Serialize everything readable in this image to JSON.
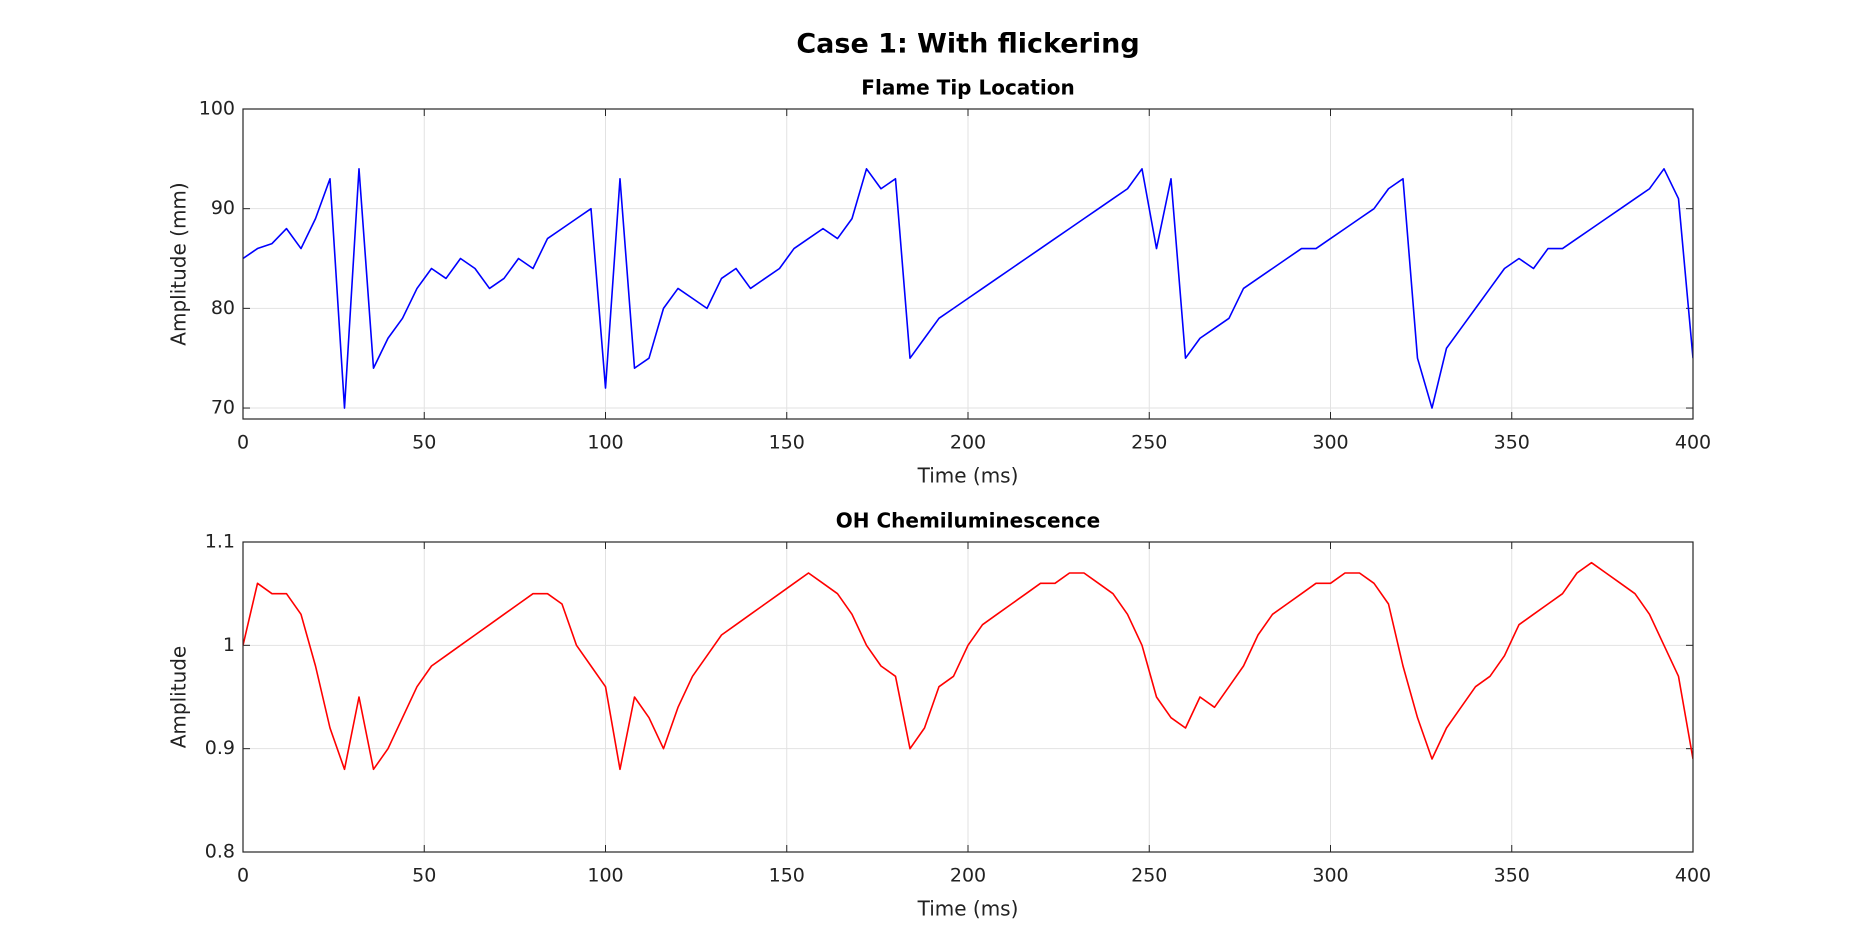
{
  "title": "Case 1: With flickering",
  "chart_data": [
    {
      "type": "line",
      "title": "Flame Tip Location",
      "xlabel": "Time (ms)",
      "ylabel": "Amplitude (mm)",
      "color": "#0000ff",
      "grid": true,
      "xlim": [
        0,
        400
      ],
      "xticks": [
        0,
        50,
        100,
        150,
        200,
        250,
        300,
        350,
        400
      ],
      "ylim": [
        68.9,
        100
      ],
      "yticks": [
        70,
        80,
        90,
        100
      ],
      "x": [
        0,
        4,
        8,
        12,
        16,
        20,
        24,
        28,
        32,
        36,
        40,
        44,
        48,
        52,
        56,
        60,
        64,
        68,
        72,
        76,
        80,
        84,
        88,
        92,
        96,
        100,
        104,
        108,
        112,
        116,
        120,
        124,
        128,
        132,
        136,
        140,
        144,
        148,
        152,
        156,
        160,
        164,
        168,
        172,
        176,
        180,
        184,
        188,
        192,
        196,
        200,
        204,
        208,
        212,
        216,
        220,
        224,
        228,
        232,
        236,
        240,
        244,
        248,
        252,
        256,
        260,
        264,
        268,
        272,
        276,
        280,
        284,
        288,
        292,
        296,
        300,
        304,
        308,
        312,
        316,
        320,
        324,
        328,
        332,
        336,
        340,
        344,
        348,
        352,
        356,
        360,
        364,
        368,
        372,
        376,
        380,
        384,
        388,
        392,
        396,
        400
      ],
      "values": [
        85,
        86,
        86.5,
        88,
        86,
        89,
        93,
        70,
        94,
        74,
        77,
        79,
        82,
        84,
        83,
        85,
        84,
        82,
        83,
        85,
        84,
        87,
        88,
        89,
        90,
        72,
        93,
        74,
        75,
        80,
        82,
        81,
        80,
        83,
        84,
        82,
        83,
        84,
        86,
        87,
        88,
        87,
        89,
        94,
        92,
        93,
        75,
        77,
        79,
        80,
        81,
        82,
        83,
        84,
        85,
        86,
        87,
        88,
        89,
        90,
        91,
        92,
        94,
        86,
        93,
        75,
        77,
        78,
        79,
        82,
        83,
        84,
        85,
        86,
        86,
        87,
        88,
        89,
        90,
        92,
        93,
        75,
        70,
        76,
        78,
        80,
        82,
        84,
        85,
        84,
        86,
        86,
        87,
        88,
        89,
        90,
        91,
        92,
        94,
        91,
        75
      ]
    },
    {
      "type": "line",
      "title": "OH Chemiluminescence",
      "xlabel": "Time (ms)",
      "ylabel": "Amplitude",
      "color": "#ff0000",
      "grid": true,
      "xlim": [
        0,
        400
      ],
      "xticks": [
        0,
        50,
        100,
        150,
        200,
        250,
        300,
        350,
        400
      ],
      "ylim": [
        0.8,
        1.1
      ],
      "yticks": [
        0.8,
        0.9,
        1,
        1.1
      ],
      "x": [
        0,
        4,
        8,
        12,
        16,
        20,
        24,
        28,
        32,
        36,
        40,
        44,
        48,
        52,
        56,
        60,
        64,
        68,
        72,
        76,
        80,
        84,
        88,
        92,
        96,
        100,
        104,
        108,
        112,
        116,
        120,
        124,
        128,
        132,
        136,
        140,
        144,
        148,
        152,
        156,
        160,
        164,
        168,
        172,
        176,
        180,
        184,
        188,
        192,
        196,
        200,
        204,
        208,
        212,
        216,
        220,
        224,
        228,
        232,
        236,
        240,
        244,
        248,
        252,
        256,
        260,
        264,
        268,
        272,
        276,
        280,
        284,
        288,
        292,
        296,
        300,
        304,
        308,
        312,
        316,
        320,
        324,
        328,
        332,
        336,
        340,
        344,
        348,
        352,
        356,
        360,
        364,
        368,
        372,
        376,
        380,
        384,
        388,
        392,
        396,
        400
      ],
      "values": [
        1.0,
        1.06,
        1.05,
        1.05,
        1.03,
        0.98,
        0.92,
        0.88,
        0.95,
        0.88,
        0.9,
        0.93,
        0.96,
        0.98,
        0.99,
        1.0,
        1.01,
        1.02,
        1.03,
        1.04,
        1.05,
        1.05,
        1.04,
        1.0,
        0.98,
        0.96,
        0.88,
        0.95,
        0.93,
        0.9,
        0.94,
        0.97,
        0.99,
        1.01,
        1.02,
        1.03,
        1.04,
        1.05,
        1.06,
        1.07,
        1.06,
        1.05,
        1.03,
        1.0,
        0.98,
        0.97,
        0.9,
        0.92,
        0.96,
        0.97,
        1.0,
        1.02,
        1.03,
        1.04,
        1.05,
        1.06,
        1.06,
        1.07,
        1.07,
        1.06,
        1.05,
        1.03,
        1.0,
        0.95,
        0.93,
        0.92,
        0.95,
        0.94,
        0.96,
        0.98,
        1.01,
        1.03,
        1.04,
        1.05,
        1.06,
        1.06,
        1.07,
        1.07,
        1.06,
        1.04,
        0.98,
        0.93,
        0.89,
        0.92,
        0.94,
        0.96,
        0.97,
        0.99,
        1.02,
        1.03,
        1.04,
        1.05,
        1.07,
        1.08,
        1.07,
        1.06,
        1.05,
        1.03,
        1.0,
        0.97,
        0.89
      ]
    }
  ]
}
